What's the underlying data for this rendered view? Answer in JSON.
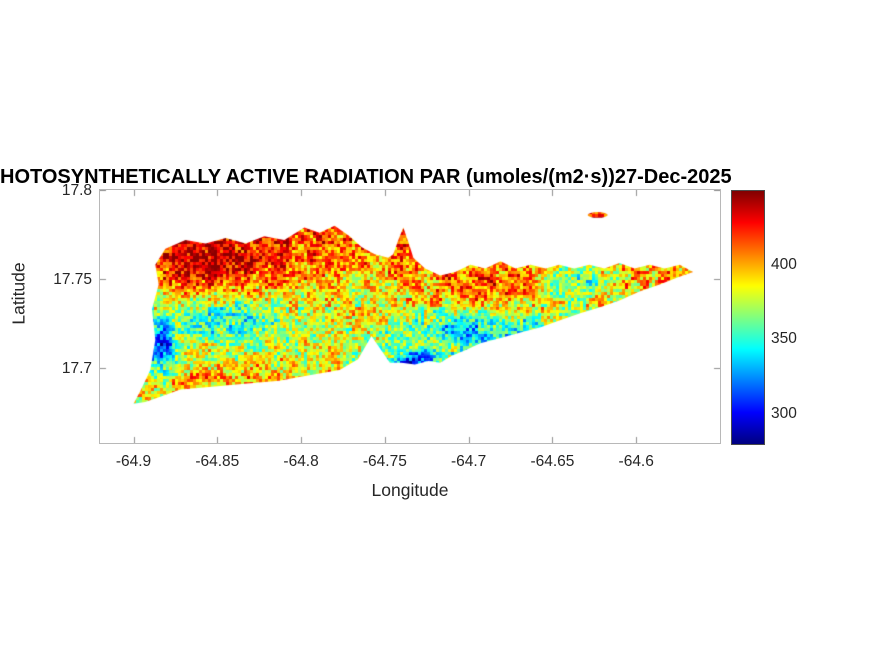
{
  "figure": {
    "background": "#ffffff"
  },
  "chart_data": {
    "type": "heatmap",
    "title": "HOTOSYNTHETICALLY ACTIVE RADIATION PAR (umoles/(m2·s))27-Dec-2025",
    "xlabel": "Longitude",
    "ylabel": "Latitude",
    "xlim": [
      -64.92,
      -64.55
    ],
    "ylim": [
      17.658,
      17.8
    ],
    "grid": false,
    "x_ticks": [
      {
        "value": -64.9,
        "label": "-64.9"
      },
      {
        "value": -64.85,
        "label": "-64.85"
      },
      {
        "value": -64.8,
        "label": "-64.8"
      },
      {
        "value": -64.75,
        "label": "-64.75"
      },
      {
        "value": -64.7,
        "label": "-64.7"
      },
      {
        "value": -64.65,
        "label": "-64.65"
      },
      {
        "value": -64.6,
        "label": "-64.6"
      }
    ],
    "y_ticks": [
      {
        "value": 17.8,
        "label": "17.8"
      },
      {
        "value": 17.75,
        "label": "17.75"
      },
      {
        "value": 17.7,
        "label": "17.7"
      }
    ],
    "colorbar": {
      "colormap": "jet",
      "min": 280,
      "max": 450,
      "ticks": [
        {
          "value": 400,
          "label": "400"
        },
        {
          "value": 350,
          "label": "350"
        },
        {
          "value": 300,
          "label": "300"
        }
      ]
    },
    "island_polygon": [
      [
        -64.9,
        17.68
      ],
      [
        -64.893,
        17.681
      ],
      [
        -64.884,
        17.684
      ],
      [
        -64.872,
        17.688
      ],
      [
        -64.86,
        17.689
      ],
      [
        -64.848,
        17.69
      ],
      [
        -64.837,
        17.691
      ],
      [
        -64.825,
        17.692
      ],
      [
        -64.813,
        17.693
      ],
      [
        -64.801,
        17.695
      ],
      [
        -64.789,
        17.697
      ],
      [
        -64.777,
        17.699
      ],
      [
        -64.766,
        17.705
      ],
      [
        -64.758,
        17.718
      ],
      [
        -64.747,
        17.703
      ],
      [
        -64.74,
        17.703
      ],
      [
        -64.732,
        17.702
      ],
      [
        -64.724,
        17.704
      ],
      [
        -64.717,
        17.703
      ],
      [
        -64.71,
        17.707
      ],
      [
        -64.702,
        17.71
      ],
      [
        -64.693,
        17.714
      ],
      [
        -64.681,
        17.717
      ],
      [
        -64.669,
        17.72
      ],
      [
        -64.657,
        17.723
      ],
      [
        -64.645,
        17.727
      ],
      [
        -64.633,
        17.731
      ],
      [
        -64.622,
        17.734
      ],
      [
        -64.61,
        17.738
      ],
      [
        -64.598,
        17.743
      ],
      [
        -64.586,
        17.747
      ],
      [
        -64.575,
        17.751
      ],
      [
        -64.566,
        17.754
      ],
      [
        -64.574,
        17.758
      ],
      [
        -64.583,
        17.756
      ],
      [
        -64.592,
        17.758
      ],
      [
        -64.601,
        17.756
      ],
      [
        -64.61,
        17.759
      ],
      [
        -64.619,
        17.756
      ],
      [
        -64.628,
        17.758
      ],
      [
        -64.637,
        17.756
      ],
      [
        -64.646,
        17.758
      ],
      [
        -64.654,
        17.756
      ],
      [
        -64.663,
        17.758
      ],
      [
        -64.672,
        17.756
      ],
      [
        -64.681,
        17.76
      ],
      [
        -64.69,
        17.756
      ],
      [
        -64.699,
        17.758
      ],
      [
        -64.708,
        17.754
      ],
      [
        -64.717,
        17.752
      ],
      [
        -64.726,
        17.756
      ],
      [
        -64.733,
        17.762
      ],
      [
        -64.736,
        17.771
      ],
      [
        -64.739,
        17.779
      ],
      [
        -64.742,
        17.772
      ],
      [
        -64.745,
        17.764
      ],
      [
        -64.748,
        17.762
      ],
      [
        -64.756,
        17.764
      ],
      [
        -64.764,
        17.768
      ],
      [
        -64.771,
        17.774
      ],
      [
        -64.78,
        17.78
      ],
      [
        -64.789,
        17.776
      ],
      [
        -64.798,
        17.779
      ],
      [
        -64.81,
        17.772
      ],
      [
        -64.822,
        17.774
      ],
      [
        -64.833,
        17.77
      ],
      [
        -64.845,
        17.773
      ],
      [
        -64.857,
        17.77
      ],
      [
        -64.869,
        17.772
      ],
      [
        -64.881,
        17.767
      ],
      [
        -64.887,
        17.758
      ],
      [
        -64.885,
        17.747
      ],
      [
        -64.889,
        17.733
      ],
      [
        -64.887,
        17.716
      ],
      [
        -64.89,
        17.699
      ],
      [
        -64.896,
        17.687
      ]
    ],
    "islet": {
      "lon": -64.623,
      "lat": 17.786,
      "rx": 0.006,
      "ry": 0.0016
    },
    "field": {
      "base": 383,
      "noise_fine": 26,
      "noise_coarse": 14,
      "clamp": [
        282,
        448
      ],
      "blobs": [
        {
          "lon": -64.855,
          "lat": 17.758,
          "sx": 0.03,
          "sy": 0.016,
          "amp": 45
        },
        {
          "lon": -64.79,
          "lat": 17.772,
          "sx": 0.08,
          "sy": 0.015,
          "amp": 30
        },
        {
          "lon": -64.69,
          "lat": 17.744,
          "sx": 0.028,
          "sy": 0.01,
          "amp": 32
        },
        {
          "lon": -64.6,
          "lat": 17.75,
          "sx": 0.03,
          "sy": 0.01,
          "amp": 18
        },
        {
          "lon": -64.845,
          "lat": 17.729,
          "sx": 0.022,
          "sy": 0.01,
          "amp": -42
        },
        {
          "lon": -64.695,
          "lat": 17.722,
          "sx": 0.03,
          "sy": 0.009,
          "amp": -48
        },
        {
          "lon": -64.732,
          "lat": 17.7035,
          "sx": 0.011,
          "sy": 0.0045,
          "amp": -75
        },
        {
          "lon": -64.883,
          "lat": 17.712,
          "sx": 0.006,
          "sy": 0.013,
          "amp": -65
        },
        {
          "lon": -64.634,
          "lat": 17.748,
          "sx": 0.016,
          "sy": 0.007,
          "amp": -38
        },
        {
          "lon": -64.84,
          "lat": 17.692,
          "sx": 0.05,
          "sy": 0.007,
          "amp": 22
        },
        {
          "lon": -64.623,
          "lat": 17.786,
          "sx": 0.01,
          "sy": 0.004,
          "amp": 45
        }
      ]
    }
  }
}
